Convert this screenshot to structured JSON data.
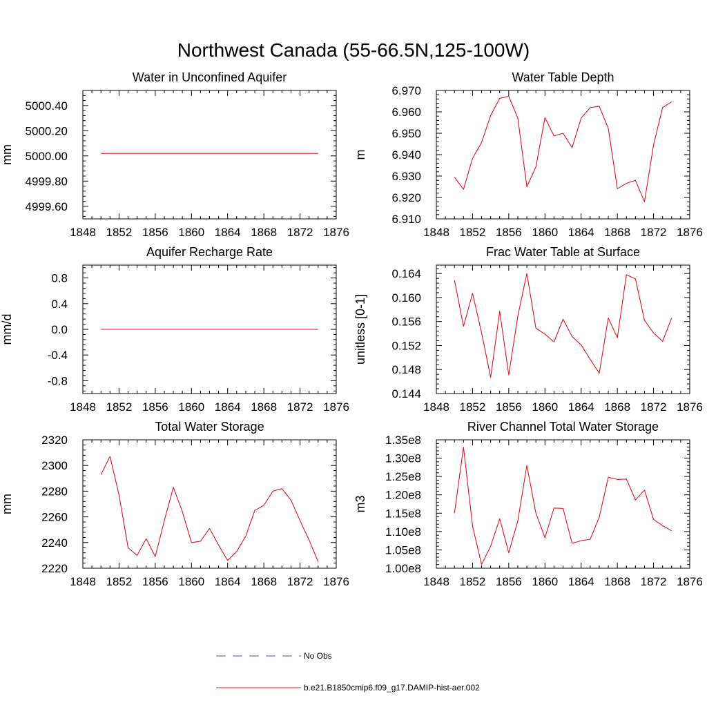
{
  "page": {
    "title": "Northwest Canada (55-66.5N,125-100W)"
  },
  "legend": {
    "entries": [
      {
        "label": "No Obs",
        "color": "#4a4ad0",
        "style": "dashed"
      },
      {
        "label": "b.e21.B1850cmip6.f09_g17.DAMIP-hist-aer.002",
        "color": "#e0141e",
        "style": "solid"
      }
    ]
  },
  "colors": {
    "series": "#e0141e",
    "obs": "#4a4ad0"
  },
  "chart_data": [
    {
      "type": "line",
      "title": "Water in Unconfined Aquifer",
      "ylabel": "mm",
      "xlim": [
        1848,
        1876
      ],
      "ylim": [
        4999.5,
        5000.52
      ],
      "xticks": [
        1848,
        1852,
        1856,
        1860,
        1864,
        1868,
        1872,
        1876
      ],
      "yticks": [
        4999.6,
        4999.8,
        5000.0,
        5000.2,
        5000.4
      ],
      "ytick_labels": [
        "4999.60",
        "4999.80",
        "5000.00",
        "5000.20",
        "5000.40"
      ],
      "x": [
        1850,
        1851,
        1852,
        1853,
        1854,
        1855,
        1856,
        1857,
        1858,
        1859,
        1860,
        1861,
        1862,
        1863,
        1864,
        1865,
        1866,
        1867,
        1868,
        1869,
        1870,
        1871,
        1872,
        1873,
        1874
      ],
      "series": [
        {
          "name": "b.e21.B1850cmip6.f09_g17.DAMIP-hist-aer.002",
          "values": [
            5000.02,
            5000.02,
            5000.02,
            5000.02,
            5000.02,
            5000.02,
            5000.02,
            5000.02,
            5000.02,
            5000.02,
            5000.02,
            5000.02,
            5000.02,
            5000.02,
            5000.02,
            5000.02,
            5000.02,
            5000.02,
            5000.02,
            5000.02,
            5000.02,
            5000.02,
            5000.02,
            5000.02,
            5000.02
          ]
        }
      ]
    },
    {
      "type": "line",
      "title": "Water Table Depth",
      "ylabel": "m",
      "xlim": [
        1848,
        1876
      ],
      "ylim": [
        6.91,
        6.97
      ],
      "xticks": [
        1848,
        1852,
        1856,
        1860,
        1864,
        1868,
        1872,
        1876
      ],
      "yticks": [
        6.91,
        6.92,
        6.93,
        6.94,
        6.95,
        6.96,
        6.97
      ],
      "ytick_labels": [
        "6.910",
        "6.920",
        "6.930",
        "6.940",
        "6.950",
        "6.960",
        "6.970"
      ],
      "x": [
        1850,
        1851,
        1852,
        1853,
        1854,
        1855,
        1856,
        1857,
        1858,
        1859,
        1860,
        1861,
        1862,
        1863,
        1864,
        1865,
        1866,
        1867,
        1868,
        1869,
        1870,
        1871,
        1872,
        1873,
        1874
      ],
      "series": [
        {
          "name": "b.e21.B1850cmip6.f09_g17.DAMIP-hist-aer.002",
          "values": [
            6.9295,
            6.9238,
            6.9383,
            6.9457,
            6.9583,
            6.9663,
            6.9673,
            6.9571,
            6.925,
            6.9343,
            6.9573,
            6.9488,
            6.95,
            6.9433,
            6.9571,
            6.962,
            6.9626,
            6.9523,
            6.9241,
            6.9266,
            6.928,
            6.918,
            6.9445,
            6.962,
            6.9647
          ]
        }
      ]
    },
    {
      "type": "line",
      "title": "Aquifer Recharge Rate",
      "ylabel": "mm/d",
      "xlim": [
        1848,
        1876
      ],
      "ylim": [
        -1.0,
        1.0
      ],
      "xticks": [
        1848,
        1852,
        1856,
        1860,
        1864,
        1868,
        1872,
        1876
      ],
      "yticks": [
        -0.8,
        -0.4,
        0.0,
        0.4,
        0.8
      ],
      "ytick_labels": [
        "-0.8",
        "-0.4",
        "0.0",
        "0.4",
        "0.8"
      ],
      "x": [
        1850,
        1851,
        1852,
        1853,
        1854,
        1855,
        1856,
        1857,
        1858,
        1859,
        1860,
        1861,
        1862,
        1863,
        1864,
        1865,
        1866,
        1867,
        1868,
        1869,
        1870,
        1871,
        1872,
        1873,
        1874
      ],
      "series": [
        {
          "name": "b.e21.B1850cmip6.f09_g17.DAMIP-hist-aer.002",
          "values": [
            0,
            0,
            0,
            0,
            0,
            0,
            0,
            0,
            0,
            0,
            0,
            0,
            0,
            0,
            0,
            0,
            0,
            0,
            0,
            0,
            0,
            0,
            0,
            0,
            0
          ]
        }
      ]
    },
    {
      "type": "line",
      "title": "Frac Water Table at Surface",
      "ylabel": "unitless [0-1]",
      "xlim": [
        1848,
        1876
      ],
      "ylim": [
        0.144,
        0.1654
      ],
      "xticks": [
        1848,
        1852,
        1856,
        1860,
        1864,
        1868,
        1872,
        1876
      ],
      "yticks": [
        0.144,
        0.148,
        0.152,
        0.156,
        0.16,
        0.164
      ],
      "ytick_labels": [
        "0.144",
        "0.148",
        "0.152",
        "0.156",
        "0.160",
        "0.164"
      ],
      "x": [
        1850,
        1851,
        1852,
        1853,
        1854,
        1855,
        1856,
        1857,
        1858,
        1859,
        1860,
        1861,
        1862,
        1863,
        1864,
        1865,
        1866,
        1867,
        1868,
        1869,
        1870,
        1871,
        1872,
        1873,
        1874
      ],
      "series": [
        {
          "name": "b.e21.B1850cmip6.f09_g17.DAMIP-hist-aer.002",
          "values": [
            0.1629,
            0.1552,
            0.1607,
            0.1541,
            0.1467,
            0.1577,
            0.1471,
            0.1569,
            0.164,
            0.1549,
            0.1539,
            0.1526,
            0.1564,
            0.1535,
            0.1521,
            0.1497,
            0.1474,
            0.1566,
            0.1533,
            0.1638,
            0.1631,
            0.1562,
            0.1541,
            0.1527,
            0.1566
          ]
        }
      ]
    },
    {
      "type": "line",
      "title": "Total Water Storage",
      "ylabel": "mm",
      "xlim": [
        1848,
        1876
      ],
      "ylim": [
        2220,
        2320
      ],
      "xticks": [
        1848,
        1852,
        1856,
        1860,
        1864,
        1868,
        1872,
        1876
      ],
      "yticks": [
        2220,
        2240,
        2260,
        2280,
        2300,
        2320
      ],
      "ytick_labels": [
        "2220",
        "2240",
        "2260",
        "2280",
        "2300",
        "2320"
      ],
      "x": [
        1850,
        1851,
        1852,
        1853,
        1854,
        1855,
        1856,
        1857,
        1858,
        1859,
        1860,
        1861,
        1862,
        1863,
        1864,
        1865,
        1866,
        1867,
        1868,
        1869,
        1870,
        1871,
        1872,
        1873,
        1874
      ],
      "series": [
        {
          "name": "b.e21.B1850cmip6.f09_g17.DAMIP-hist-aer.002",
          "values": [
            2293,
            2307,
            2277,
            2236,
            2230,
            2243,
            2229,
            2257,
            2283,
            2264,
            2240,
            2241,
            2251,
            2238,
            2226,
            2233,
            2245,
            2265,
            2269,
            2280,
            2282,
            2273,
            2257,
            2242,
            2225
          ]
        }
      ]
    },
    {
      "type": "line",
      "title": "River Channel Total Water Storage",
      "ylabel": "m3",
      "xlim": [
        1848,
        1876
      ],
      "ylim": [
        100000000,
        135000000
      ],
      "xticks": [
        1848,
        1852,
        1856,
        1860,
        1864,
        1868,
        1872,
        1876
      ],
      "yticks": [
        100000000,
        105000000,
        110000000,
        115000000,
        120000000,
        125000000,
        130000000,
        135000000
      ],
      "ytick_labels": [
        "1.00e8",
        "1.05e8",
        "1.10e8",
        "1.15e8",
        "1.20e8",
        "1.25e8",
        "1.30e8",
        "1.35e8"
      ],
      "x": [
        1850,
        1851,
        1852,
        1853,
        1854,
        1855,
        1856,
        1857,
        1858,
        1859,
        1860,
        1861,
        1862,
        1863,
        1864,
        1865,
        1866,
        1867,
        1868,
        1869,
        1870,
        1871,
        1872,
        1873,
        1874
      ],
      "series": [
        {
          "name": "b.e21.B1850cmip6.f09_g17.DAMIP-hist-aer.002",
          "values": [
            115000000,
            133000000,
            111500000,
            101000000,
            106000000,
            113500000,
            104200000,
            112900000,
            128000000,
            115000000,
            108300000,
            116400000,
            116300000,
            106800000,
            107500000,
            107900000,
            113900000,
            124800000,
            124200000,
            124300000,
            118600000,
            121300000,
            113300000,
            111600000,
            110200000
          ]
        }
      ]
    }
  ]
}
